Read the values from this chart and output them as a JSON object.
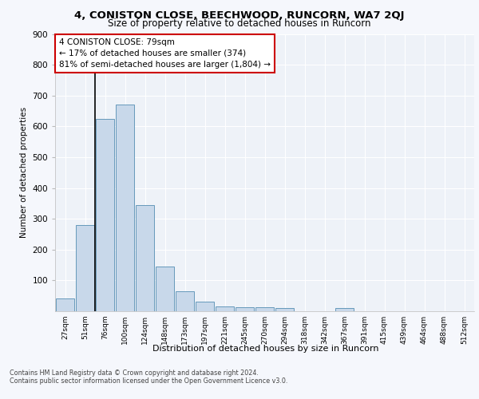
{
  "title1": "4, CONISTON CLOSE, BEECHWOOD, RUNCORN, WA7 2QJ",
  "title2": "Size of property relative to detached houses in Runcorn",
  "xlabel": "Distribution of detached houses by size in Runcorn",
  "ylabel": "Number of detached properties",
  "categories": [
    "27sqm",
    "51sqm",
    "76sqm",
    "100sqm",
    "124sqm",
    "148sqm",
    "173sqm",
    "197sqm",
    "221sqm",
    "245sqm",
    "270sqm",
    "294sqm",
    "318sqm",
    "342sqm",
    "367sqm",
    "391sqm",
    "415sqm",
    "439sqm",
    "464sqm",
    "488sqm",
    "512sqm"
  ],
  "values": [
    42,
    280,
    625,
    670,
    345,
    145,
    65,
    30,
    15,
    12,
    12,
    10,
    0,
    0,
    10,
    0,
    0,
    0,
    0,
    0,
    0
  ],
  "bar_color": "#c8d8ea",
  "bar_edge_color": "#6699bb",
  "vline_bin_index": 2,
  "vline_color": "#000000",
  "annotation_text": "4 CONISTON CLOSE: 79sqm\n← 17% of detached houses are smaller (374)\n81% of semi-detached houses are larger (1,804) →",
  "annotation_box_facecolor": "#ffffff",
  "annotation_box_edgecolor": "#cc0000",
  "background_color": "#eef2f8",
  "fig_facecolor": "#f5f7fc",
  "grid_color": "#ffffff",
  "yticks": [
    100,
    200,
    300,
    400,
    500,
    600,
    700,
    800,
    900
  ],
  "ylim": [
    0,
    900
  ],
  "footer1": "Contains HM Land Registry data © Crown copyright and database right 2024.",
  "footer2": "Contains public sector information licensed under the Open Government Licence v3.0."
}
